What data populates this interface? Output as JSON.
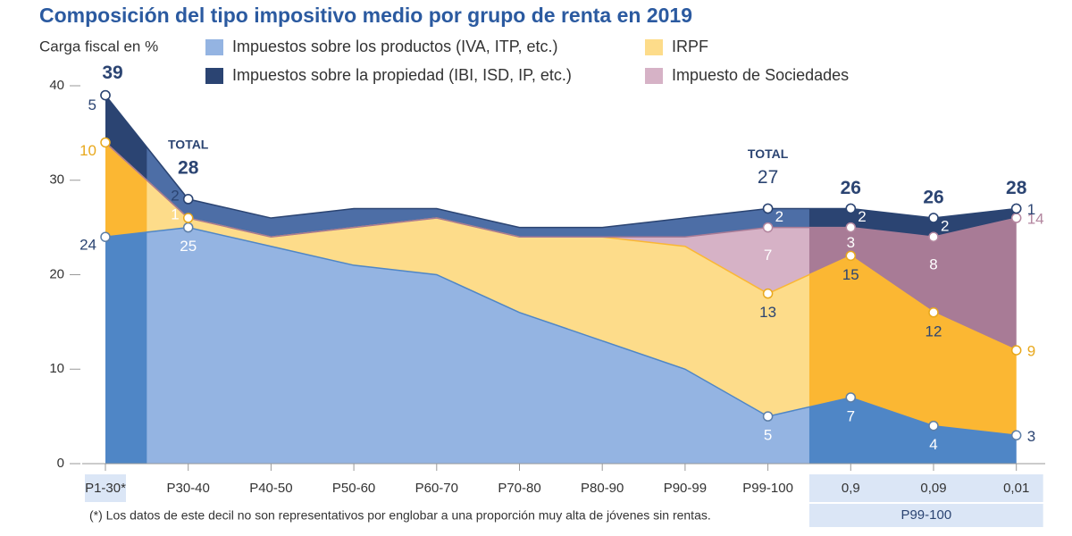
{
  "chart_data": {
    "type": "stacked_area",
    "title": "Composición del tipo impositivo medio por grupo de renta en 2019",
    "y_label": "Carga fiscal en %",
    "categories": [
      "P1-30*",
      "P30-40",
      "P40-50",
      "P50-60",
      "P60-70",
      "P70-80",
      "P80-90",
      "P90-99",
      "P99-100",
      "0,9",
      "0,09",
      "0,01"
    ],
    "group_label": "P99-100",
    "series": [
      {
        "name": "Impuestos sobre los productos (IVA, ITP, etc.)",
        "color": "#94b4e2",
        "highlight_color": "#4f86c6",
        "label_color": "#5d7fa8",
        "values": [
          24,
          25,
          23,
          21,
          20,
          16,
          13,
          10,
          5,
          7,
          4,
          3
        ],
        "value_labels": [
          "24",
          "25",
          null,
          null,
          null,
          null,
          null,
          null,
          "5",
          "7",
          "4",
          "3"
        ]
      },
      {
        "name": "IRPF",
        "color": "#fddc8a",
        "highlight_color": "#fbb733",
        "label_color": "#e8a81c",
        "values": [
          10,
          1,
          1,
          4,
          6,
          8,
          11,
          13,
          13,
          15,
          12,
          9
        ],
        "value_labels": [
          "10",
          "1",
          null,
          null,
          null,
          null,
          null,
          null,
          "13",
          "15",
          "12",
          "9"
        ]
      },
      {
        "name": "Impuesto de Sociedades",
        "color": "#d6b2c6",
        "highlight_color": "#a87b96",
        "label_color": "#b3869f",
        "values": [
          0,
          0,
          0,
          0,
          0,
          0,
          0,
          1,
          7,
          3,
          8,
          14
        ],
        "value_labels": [
          null,
          null,
          null,
          null,
          null,
          null,
          null,
          null,
          "7",
          "3",
          "8",
          "14"
        ]
      },
      {
        "name": "Impuestos sobre la propiedad (IBI, ISD, IP, etc.)",
        "color": "#4d6ea6",
        "highlight_color": "#2b4472",
        "label_color": "#2b4472",
        "values": [
          5,
          2,
          2,
          2,
          1,
          1,
          1,
          2,
          2,
          2,
          2,
          1
        ],
        "value_labels": [
          "5",
          "2",
          null,
          null,
          null,
          null,
          null,
          null,
          "2",
          "2",
          "2",
          "1"
        ]
      }
    ],
    "totals": [
      39,
      28,
      null,
      null,
      null,
      null,
      null,
      null,
      27,
      26,
      26,
      28
    ],
    "total_label": "TOTAL",
    "ylim": [
      0,
      40
    ],
    "yticks": [
      0,
      10,
      20,
      30,
      40
    ],
    "footnote": "(*) Los datos de este decil no son representativos por englobar a una proporción muy alta de jóvenes sin rentas."
  }
}
